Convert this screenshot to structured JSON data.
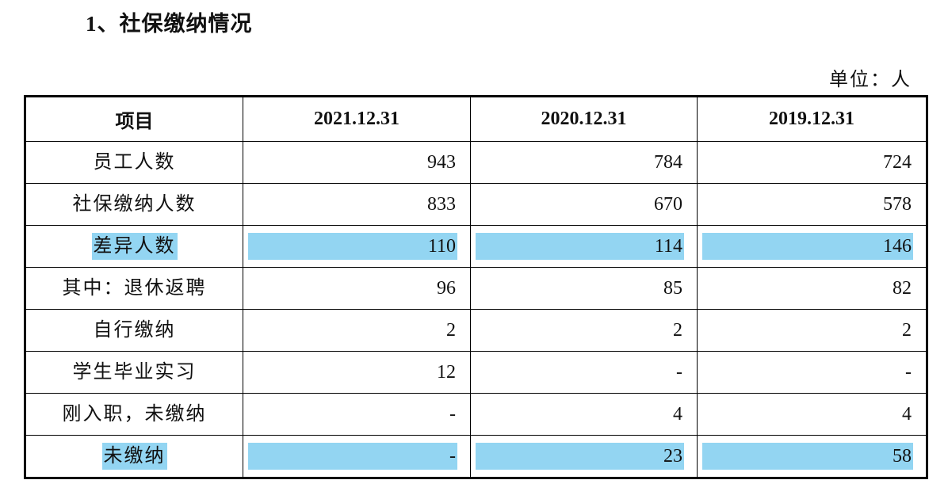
{
  "header": {
    "title": "1、社保缴纳情况",
    "unit": "单位：人"
  },
  "table": {
    "columns": [
      "项目",
      "2021.12.31",
      "2020.12.31",
      "2019.12.31"
    ],
    "rows": [
      [
        "员工人数",
        943,
        784,
        724
      ],
      [
        "社保缴纳人数",
        833,
        670,
        578
      ],
      [
        "差异人数",
        110,
        114,
        146
      ],
      [
        "其中：退休返聘",
        96,
        85,
        82
      ],
      [
        "自行缴纳",
        2,
        2,
        2
      ],
      [
        "学生毕业实习",
        12,
        "-",
        "-"
      ],
      [
        "刚入职，未缴纳",
        "-",
        4,
        4
      ],
      [
        "未缴纳",
        "-",
        23,
        58
      ]
    ]
  }
}
